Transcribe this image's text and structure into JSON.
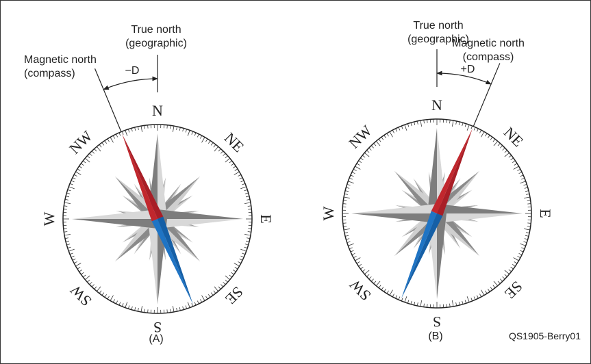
{
  "panels": [
    {
      "label": "(A)",
      "true_north": [
        "True north",
        "(geographic)"
      ],
      "magnetic_north": [
        "Magnetic north",
        "(compass)"
      ],
      "declination": "−D",
      "directions": [
        "N",
        "NE",
        "E",
        "SE",
        "S",
        "SW",
        "W",
        "NW"
      ]
    },
    {
      "label": "(B)",
      "true_north": [
        "True north",
        "(geographic)"
      ],
      "magnetic_north": [
        "Magnetic north",
        "(compass)"
      ],
      "declination": "+D",
      "directions": [
        "N",
        "NE",
        "E",
        "SE",
        "S",
        "SW",
        "W",
        "NW"
      ]
    }
  ],
  "figure_id": "QS1905-Berry01"
}
